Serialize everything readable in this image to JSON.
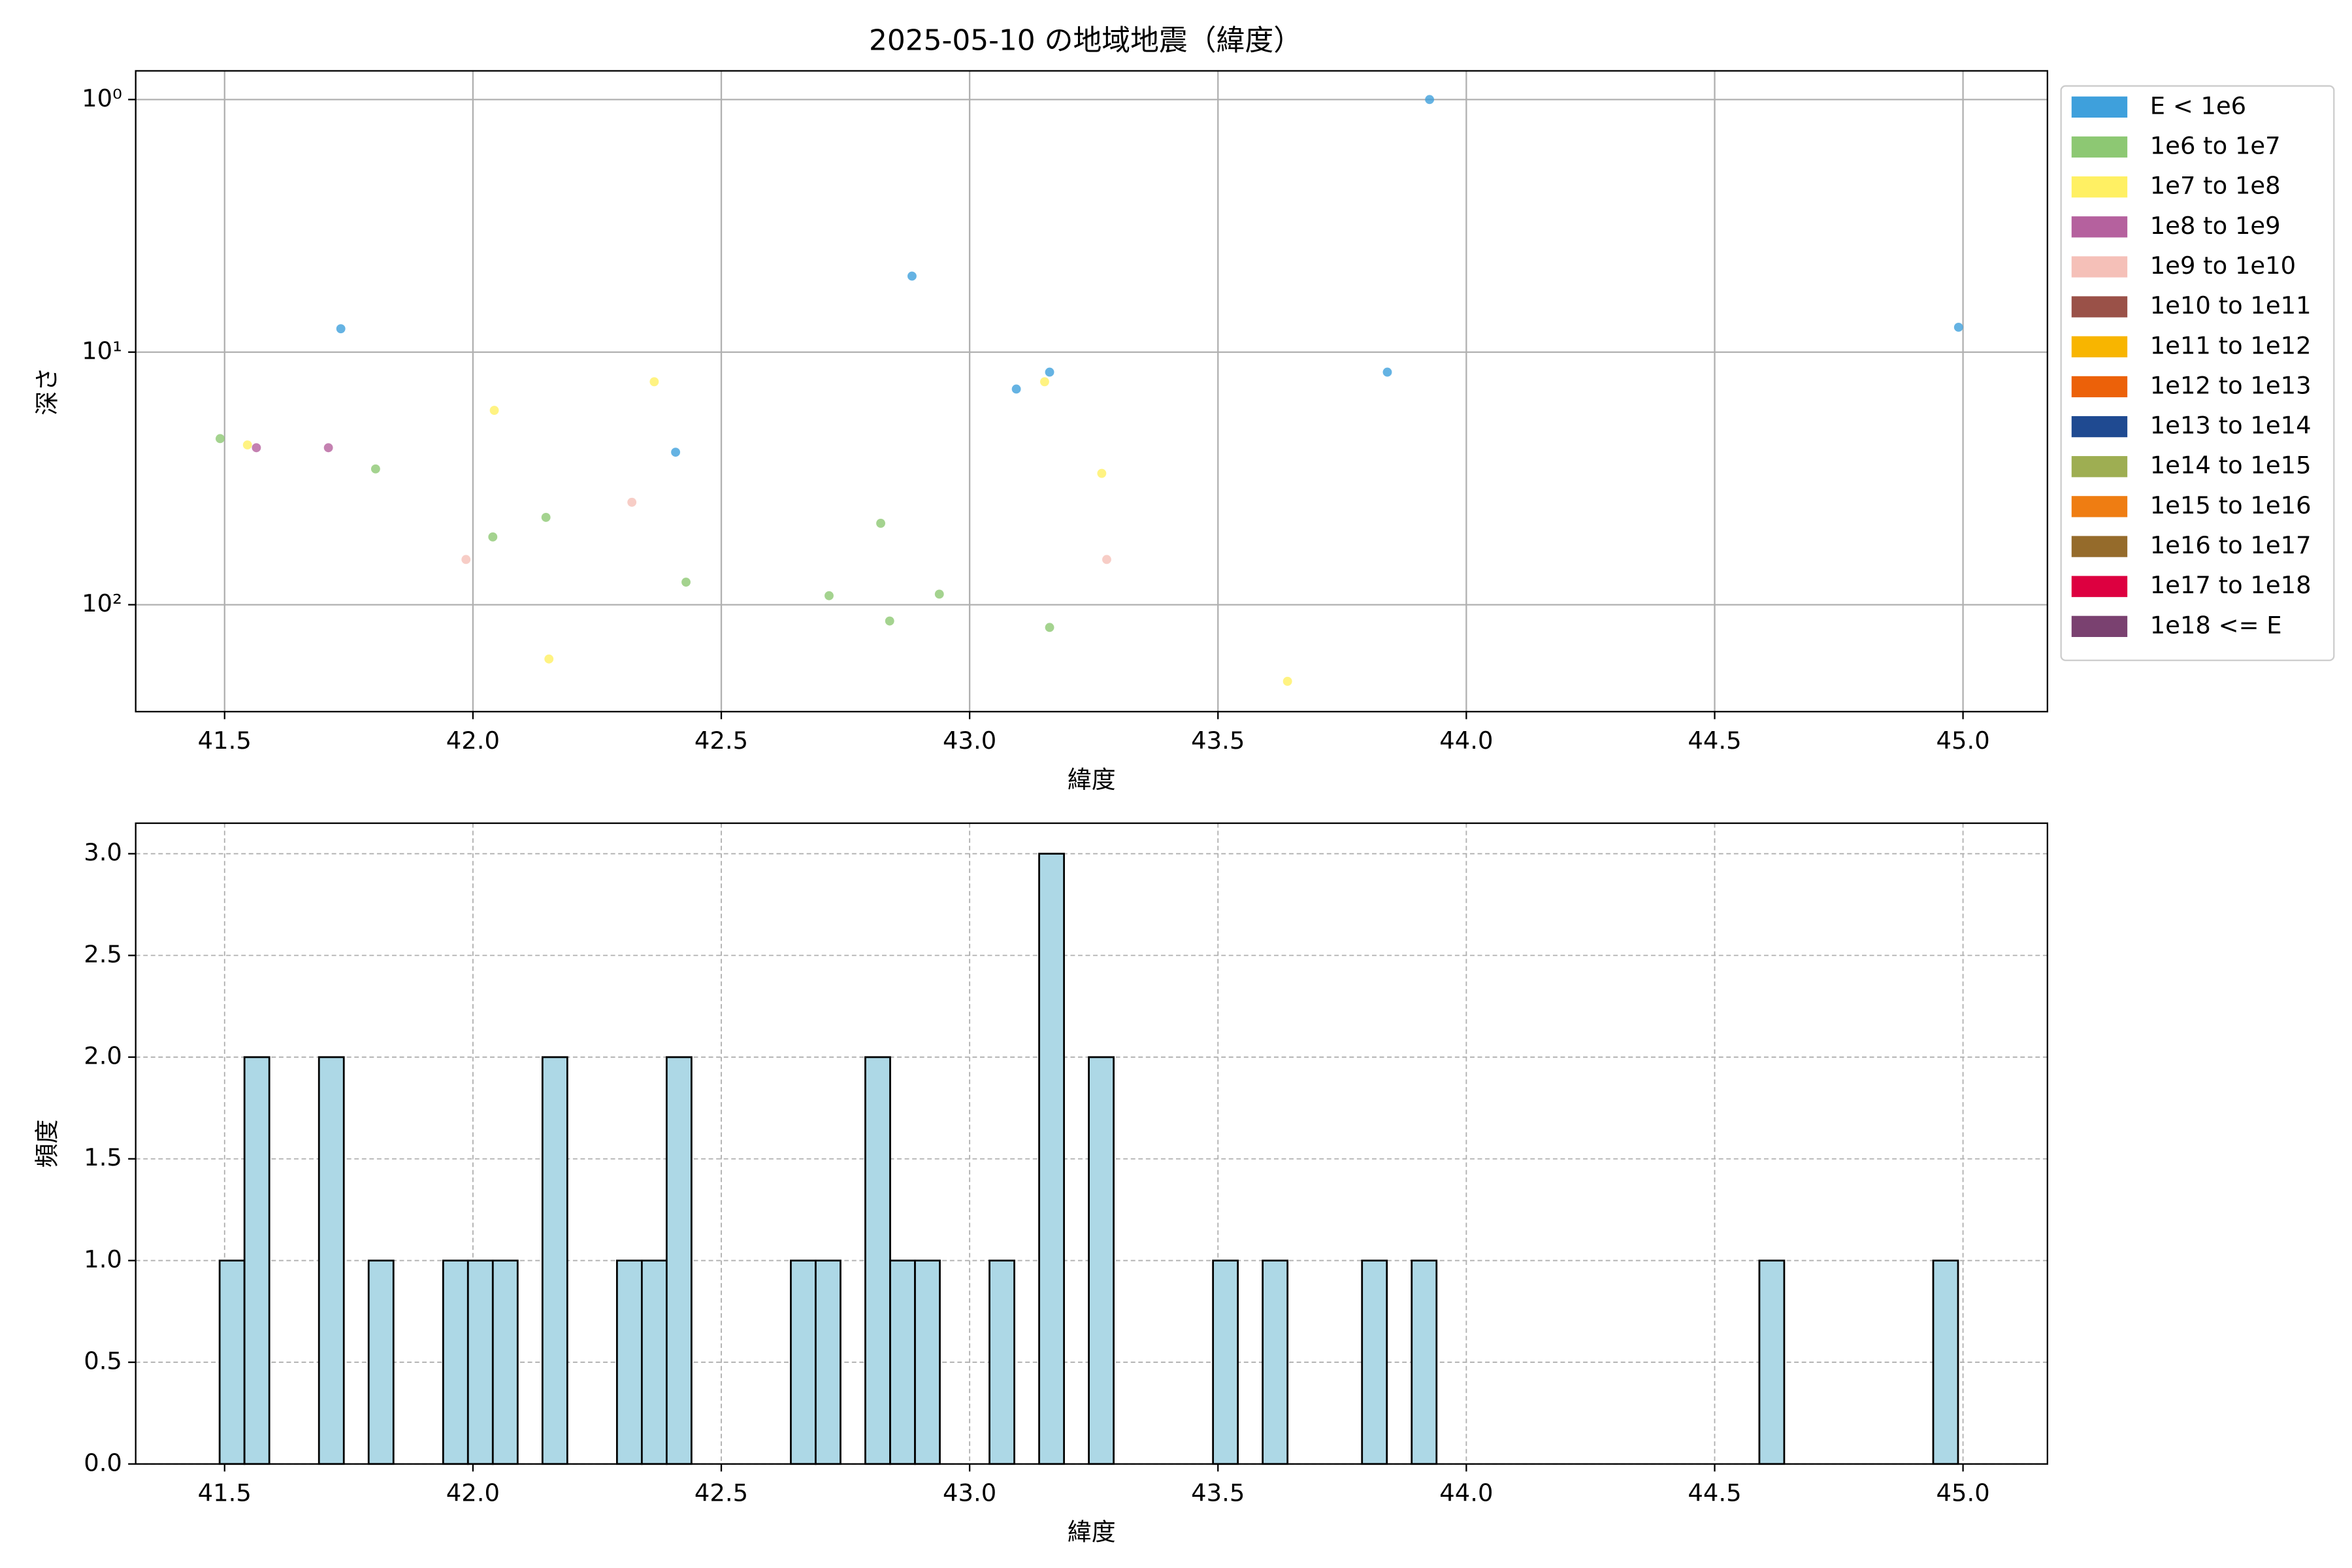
{
  "chart_data": [
    {
      "type": "scatter",
      "title": "2025-05-10 の地域地震（緯度）",
      "x_label": "緯度",
      "y_label": "深さ",
      "xlim": [
        41.321,
        45.17
      ],
      "xticks": [
        41.5,
        {
          "value": 42,
          "label": "42.0"
        },
        42.5,
        {
          "value": 43,
          "label": "43.0"
        },
        43.5,
        {
          "value": 44,
          "label": "44.0"
        },
        44.5,
        {
          "value": 45,
          "label": "45.0"
        }
      ],
      "ylim": [
        265,
        0.77
      ],
      "y_scale": "log",
      "y_inverted": true,
      "yticks": [
        {
          "value": 1,
          "label": "10⁰"
        },
        {
          "value": 10,
          "label": "10¹"
        },
        {
          "value": 100,
          "label": "10²"
        }
      ],
      "grid": true,
      "legend": "outside right",
      "series": [
        {
          "name": "E < 1e6",
          "color": "#3ea0dc",
          "x": [
            43.926,
            41.734,
            42.884,
            43.094,
            43.161,
            42.408,
            43.841,
            44.991
          ],
          "values": [
            1.0,
            8.08,
            5.0,
            14.0,
            12.0,
            24.9,
            12.0,
            7.97
          ]
        },
        {
          "name": "1e6 to 1e7",
          "color": "#8dc873",
          "x": [
            41.491,
            41.804,
            42.04,
            42.147,
            42.429,
            42.717,
            42.821,
            42.839,
            42.939,
            43.161
          ],
          "values": [
            22.0,
            29.0,
            53.9,
            45.1,
            81.4,
            92.1,
            47.6,
            116,
            90.8,
            123
          ]
        },
        {
          "name": "1e7 to 1e8",
          "color": "#fff063",
          "x": [
            41.546,
            42.043,
            42.153,
            42.365,
            43.151,
            43.266,
            43.64
          ],
          "values": [
            23.3,
            17.0,
            164,
            13.1,
            13.1,
            30.2,
            201
          ]
        },
        {
          "name": "1e8 to 1e9",
          "color": "#b5619e",
          "x": [
            41.564,
            41.709
          ],
          "values": [
            23.9,
            23.9
          ]
        },
        {
          "name": "1e9 to 1e10",
          "color": "#f5c0b8",
          "x": [
            41.986,
            42.32,
            43.276
          ],
          "values": [
            66.2,
            39.3,
            66.2
          ]
        },
        {
          "name": "1e10 to 1e11",
          "color": "#9a5148",
          "x": [],
          "values": []
        },
        {
          "name": "1e11 to 1e12",
          "color": "#f8b500",
          "x": [],
          "values": []
        },
        {
          "name": "1e12 to 1e13",
          "color": "#ec6109",
          "x": [],
          "values": []
        },
        {
          "name": "1e13 to 1e14",
          "color": "#1f4a91",
          "x": [],
          "values": []
        },
        {
          "name": "1e14 to 1e15",
          "color": "#9eae52",
          "x": [],
          "values": []
        },
        {
          "name": "1e15 to 1e16",
          "color": "#ef7d12",
          "x": [],
          "values": []
        },
        {
          "name": "1e16 to 1e17",
          "color": "#956b2b",
          "x": [],
          "values": []
        },
        {
          "name": "1e17 to 1e18",
          "color": "#dd0040",
          "x": [],
          "values": []
        },
        {
          "name": "1e18 <= E",
          "color": "#7a4170",
          "x": [],
          "values": []
        }
      ]
    },
    {
      "type": "histogram",
      "x_label": "緯度",
      "y_label": "頻度",
      "color": "#add8e6",
      "edgecolor": "#000000",
      "xlim": [
        41.321,
        45.17
      ],
      "xticks": [
        41.5,
        {
          "value": 42,
          "label": "42.0"
        },
        42.5,
        {
          "value": 43,
          "label": "43.0"
        },
        43.5,
        {
          "value": 44,
          "label": "44.0"
        },
        44.5,
        {
          "value": 45,
          "label": "45.0"
        }
      ],
      "ylim": [
        0,
        3.15
      ],
      "yticks": [
        {
          "value": 0,
          "label": "0.0"
        },
        0.5,
        {
          "value": 1,
          "label": "1.0"
        },
        1.5,
        {
          "value": 2,
          "label": "2.0"
        },
        2.5,
        {
          "value": 3,
          "label": "3.0"
        }
      ],
      "grid": true,
      "grid_style": "dashed",
      "bins": [
        41.49,
        41.54,
        41.59,
        41.64,
        41.69,
        41.74,
        41.79,
        41.84,
        41.89,
        41.94,
        41.99,
        42.04,
        42.09,
        42.14,
        42.19,
        42.24,
        42.29,
        42.34,
        42.39,
        42.44,
        42.49,
        42.54,
        42.59,
        42.64,
        42.69,
        42.74,
        42.79,
        42.84,
        42.89,
        42.94,
        42.99,
        43.04,
        43.09,
        43.14,
        43.19,
        43.24,
        43.29,
        43.34,
        43.39,
        43.44,
        43.49,
        43.54,
        43.59,
        43.64,
        43.69,
        43.74,
        43.79,
        43.84,
        43.89,
        43.94,
        43.99,
        44.04,
        44.09,
        44.14,
        44.19,
        44.24,
        44.29,
        44.34,
        44.39,
        44.44,
        44.49,
        44.54,
        44.59,
        44.64,
        44.69,
        44.74,
        44.79,
        44.84,
        44.89,
        44.94,
        44.99
      ],
      "values": [
        1,
        2,
        0,
        0,
        2,
        0,
        1,
        0,
        0,
        1,
        1,
        1,
        0,
        2,
        0,
        0,
        1,
        1,
        2,
        0,
        0,
        0,
        0,
        1,
        1,
        0,
        2,
        1,
        1,
        0,
        0,
        1,
        0,
        3,
        0,
        2,
        0,
        0,
        0,
        0,
        1,
        0,
        1,
        0,
        0,
        0,
        1,
        0,
        1,
        0,
        0,
        0,
        0,
        0,
        0,
        0,
        0,
        0,
        0,
        0,
        0,
        0,
        1,
        0,
        0,
        0,
        0,
        0,
        0,
        1
      ]
    }
  ]
}
